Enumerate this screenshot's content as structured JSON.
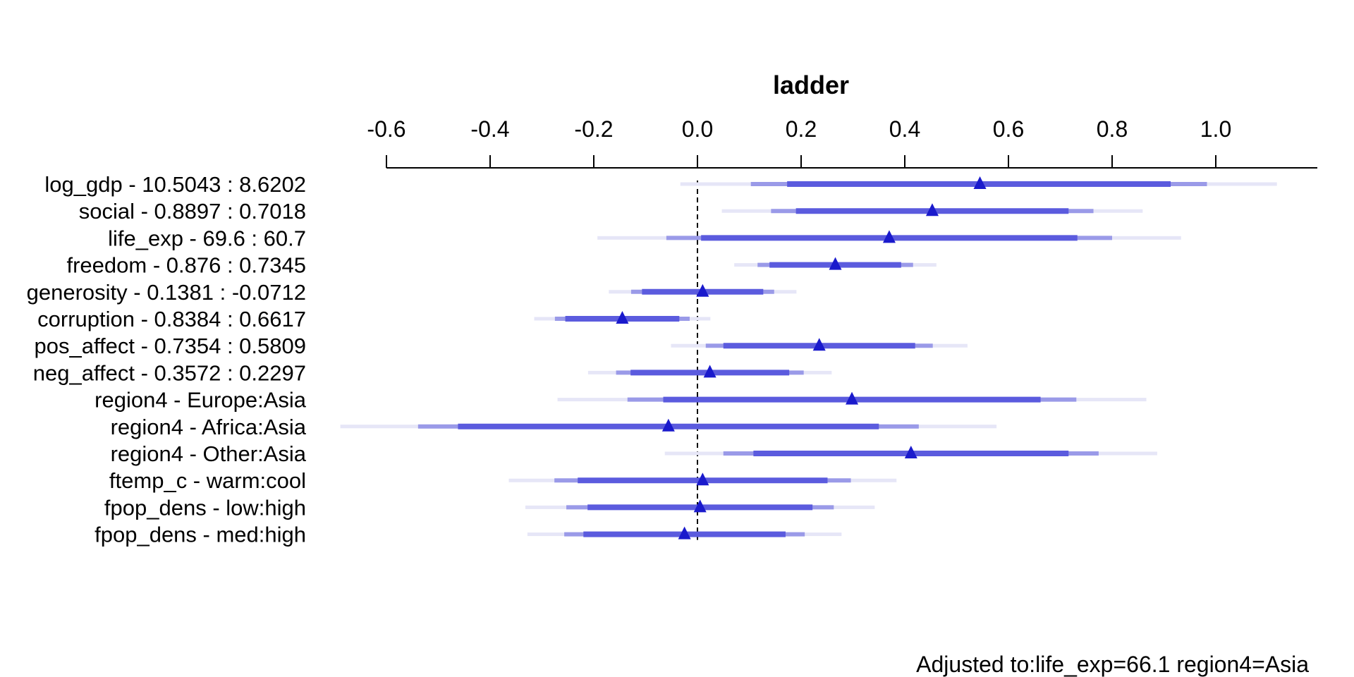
{
  "chart_data": {
    "type": "forest",
    "title": "ladder",
    "xlim": [
      -0.6,
      1.2
    ],
    "ticks": [
      -0.6,
      -0.4,
      -0.2,
      0.0,
      0.2,
      0.4,
      0.6,
      0.8,
      1.0
    ],
    "tick_labels": [
      "-0.6",
      "-0.4",
      "-0.2",
      "0.0",
      "0.2",
      "0.4",
      "0.6",
      "0.8",
      "1.0"
    ],
    "reference_line": 0.0,
    "rows": [
      {
        "label": "log_gdp - 10.5043 : 8.6202",
        "estimate": 0.545,
        "ci_inner": [
          0.173,
          0.913
        ],
        "ci_mid": [
          0.103,
          0.983
        ],
        "ci_outer": [
          -0.033,
          1.118
        ]
      },
      {
        "label": "social - 0.8897 : 0.7018",
        "estimate": 0.453,
        "ci_inner": [
          0.19,
          0.716
        ],
        "ci_mid": [
          0.142,
          0.764
        ],
        "ci_outer": [
          0.047,
          0.859
        ]
      },
      {
        "label": "life_exp - 69.6 : 60.7",
        "estimate": 0.37,
        "ci_inner": [
          0.007,
          0.733
        ],
        "ci_mid": [
          -0.06,
          0.8
        ],
        "ci_outer": [
          -0.193,
          0.933
        ]
      },
      {
        "label": "freedom - 0.876 : 0.7345",
        "estimate": 0.266,
        "ci_inner": [
          0.139,
          0.393
        ],
        "ci_mid": [
          0.116,
          0.416
        ],
        "ci_outer": [
          0.071,
          0.461
        ]
      },
      {
        "label": "generosity - 0.1381 : -0.0712",
        "estimate": 0.01,
        "ci_inner": [
          -0.107,
          0.127
        ],
        "ci_mid": [
          -0.128,
          0.148
        ],
        "ci_outer": [
          -0.171,
          0.191
        ]
      },
      {
        "label": "corruption - 0.8384 : 0.6617",
        "estimate": -0.145,
        "ci_inner": [
          -0.255,
          -0.035
        ],
        "ci_mid": [
          -0.275,
          -0.015
        ],
        "ci_outer": [
          -0.315,
          0.025
        ]
      },
      {
        "label": "pos_affect - 0.7354 : 0.5809",
        "estimate": 0.235,
        "ci_inner": [
          0.05,
          0.42
        ],
        "ci_mid": [
          0.016,
          0.454
        ],
        "ci_outer": [
          -0.051,
          0.521
        ]
      },
      {
        "label": "neg_affect - 0.3572 : 0.2297",
        "estimate": 0.024,
        "ci_inner": [
          -0.129,
          0.177
        ],
        "ci_mid": [
          -0.157,
          0.205
        ],
        "ci_outer": [
          -0.211,
          0.259
        ]
      },
      {
        "label": "region4 - Europe:Asia",
        "estimate": 0.298,
        "ci_inner": [
          -0.066,
          0.662
        ],
        "ci_mid": [
          -0.135,
          0.731
        ],
        "ci_outer": [
          -0.27,
          0.866
        ]
      },
      {
        "label": "region4 - Africa:Asia",
        "estimate": -0.056,
        "ci_inner": [
          -0.462,
          0.35
        ],
        "ci_mid": [
          -0.539,
          0.427
        ],
        "ci_outer": [
          -0.689,
          0.577
        ]
      },
      {
        "label": "region4 - Other:Asia",
        "estimate": 0.412,
        "ci_inner": [
          0.108,
          0.716
        ],
        "ci_mid": [
          0.05,
          0.774
        ],
        "ci_outer": [
          -0.063,
          0.887
        ]
      },
      {
        "label": "ftemp_c - warm:cool",
        "estimate": 0.01,
        "ci_inner": [
          -0.231,
          0.251
        ],
        "ci_mid": [
          -0.276,
          0.296
        ],
        "ci_outer": [
          -0.364,
          0.384
        ]
      },
      {
        "label": "fpop_dens - low:high",
        "estimate": 0.005,
        "ci_inner": [
          -0.212,
          0.222
        ],
        "ci_mid": [
          -0.253,
          0.263
        ],
        "ci_outer": [
          -0.332,
          0.342
        ]
      },
      {
        "label": "fpop_dens - med:high",
        "estimate": -0.025,
        "ci_inner": [
          -0.22,
          0.17
        ],
        "ci_mid": [
          -0.257,
          0.207
        ],
        "ci_outer": [
          -0.328,
          0.278
        ]
      }
    ],
    "note": "Adjusted to:life_exp=66.1 region4=Asia",
    "colors": {
      "estimate": "#1a1acc",
      "ci_inner": "#5b5bde",
      "ci_mid": "#9a9ae8",
      "ci_outer": "#e6e6f7",
      "axis": "#000000",
      "reference": "#000000"
    }
  }
}
